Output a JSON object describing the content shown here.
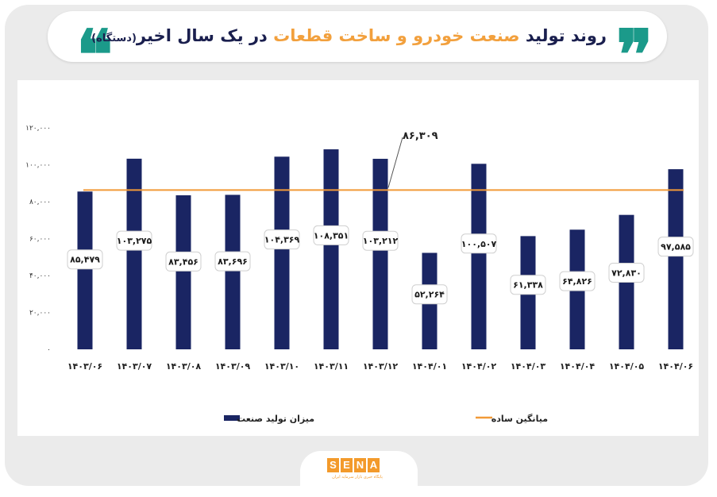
{
  "header": {
    "title_part1": "روند تولید",
    "title_highlight": "صنعت خودرو و ساخت قطعات",
    "title_part2": "در یک سال اخیر",
    "title_unit": "(دستگاه)",
    "quote_left": "❝",
    "quote_right": "❞"
  },
  "colors": {
    "bar": "#1a2563",
    "average_line": "#f29a38",
    "accent_teal": "#1b9a8a",
    "accent_orange": "#f2a03d",
    "title_text": "#1a1f4e"
  },
  "chart_data": {
    "type": "bar",
    "categories": [
      "۱۴۰۳/۰۶",
      "۱۴۰۳/۰۷",
      "۱۴۰۳/۰۸",
      "۱۴۰۳/۰۹",
      "۱۴۰۳/۱۰",
      "۱۴۰۳/۱۱",
      "۱۴۰۳/۱۲",
      "۱۴۰۴/۰۱",
      "۱۴۰۴/۰۲",
      "۱۴۰۴/۰۳",
      "۱۴۰۴/۰۴",
      "۱۴۰۴/۰۵",
      "۱۴۰۴/۰۶"
    ],
    "values": [
      85479,
      103275,
      83456,
      83696,
      104369,
      108351,
      103212,
      52264,
      100507,
      61338,
      64826,
      72830,
      97585
    ],
    "value_labels": [
      "۸۵,۴۷۹",
      "۱۰۳,۲۷۵",
      "۸۳,۴۵۶",
      "۸۳,۶۹۶",
      "۱۰۴,۳۶۹",
      "۱۰۸,۳۵۱",
      "۱۰۳,۲۱۲",
      "۵۲,۲۶۴",
      "۱۰۰,۵۰۷",
      "۶۱,۳۳۸",
      "۶۴,۸۲۶",
      "۷۲,۸۳۰",
      "۹۷,۵۸۵"
    ],
    "average": 86309,
    "average_label": "۸۶,۳۰۹",
    "ylim": [
      0,
      120000
    ],
    "yticks": [
      0,
      20000,
      40000,
      60000,
      80000,
      100000,
      120000
    ],
    "ytick_labels": [
      "۰",
      "۲۰,۰۰۰",
      "۴۰,۰۰۰",
      "۶۰,۰۰۰",
      "۸۰,۰۰۰",
      "۱۰۰,۰۰۰",
      "۱۲۰,۰۰۰"
    ],
    "grid": false,
    "legend_position": "bottom",
    "legend": [
      {
        "name": "میزان تولید صنعت",
        "kind": "bar"
      },
      {
        "name": "میانگین ساده",
        "kind": "line"
      }
    ]
  },
  "footer": {
    "logo_letters": [
      "S",
      "E",
      "N",
      "A"
    ],
    "logo_sub": "پایگاه خبری بازار سرمایه ایران"
  }
}
